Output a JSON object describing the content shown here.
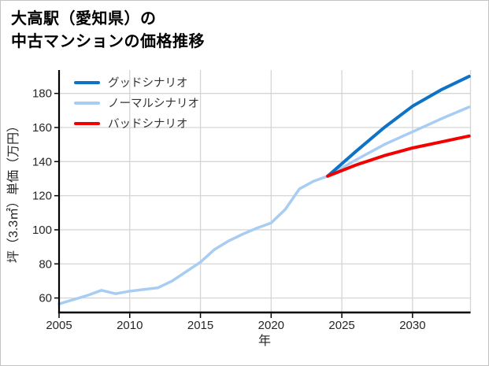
{
  "chart_data": {
    "type": "line",
    "title": "大高駅（愛知県）の中古マンションの価格推移",
    "title_lines": [
      "大高駅（愛知県）の",
      "中古マンションの価格推移"
    ],
    "xlabel": "年",
    "ylabel": "坪（3.3㎡）単価（万円）",
    "xlim": [
      2005,
      2034.1
    ],
    "ylim": [
      51.5,
      193.7
    ],
    "x_ticks": [
      2005,
      2010,
      2015,
      2020,
      2025,
      2030
    ],
    "y_ticks": [
      60,
      80,
      100,
      120,
      140,
      160,
      180
    ],
    "grid": true,
    "grid_color": "#d5d5d5",
    "axis_color": "#000000",
    "tick_label_color": "#262626",
    "legend_position": "upper-left-inside-no-frame",
    "series": [
      {
        "name": null,
        "show_in_legend": false,
        "color": "#a8cdf3",
        "line_width": 3.5,
        "x": [
          2005,
          2006,
          2007,
          2008,
          2009,
          2010,
          2011,
          2012,
          2013,
          2014,
          2015,
          2016,
          2017,
          2018,
          2019,
          2020,
          2021,
          2022,
          2023,
          2024
        ],
        "values": [
          56.5,
          59,
          61.5,
          64.5,
          62.5,
          64,
          65,
          66,
          70,
          75.5,
          81,
          88.5,
          93.5,
          97.5,
          101,
          104,
          112,
          124,
          128.5,
          131.5
        ]
      },
      {
        "name": "グッドシナリオ",
        "show_in_legend": true,
        "color": "#0e72c6",
        "line_width": 4,
        "x": [
          2024,
          2026,
          2028,
          2030,
          2032,
          2034
        ],
        "values": [
          131.5,
          146,
          160,
          172.5,
          182,
          190
        ]
      },
      {
        "name": "ノーマルシナリオ",
        "show_in_legend": true,
        "color": "#a8cdf3",
        "line_width": 3.5,
        "x": [
          2024,
          2026,
          2028,
          2030,
          2032,
          2034
        ],
        "values": [
          131.5,
          141,
          150,
          157.5,
          165,
          172
        ]
      },
      {
        "name": "バッドシナリオ",
        "show_in_legend": true,
        "color": "#f20000",
        "line_width": 4,
        "x": [
          2024,
          2026,
          2028,
          2030,
          2032,
          2034
        ],
        "values": [
          131.5,
          138,
          143.5,
          148,
          151.5,
          155
        ]
      }
    ]
  }
}
